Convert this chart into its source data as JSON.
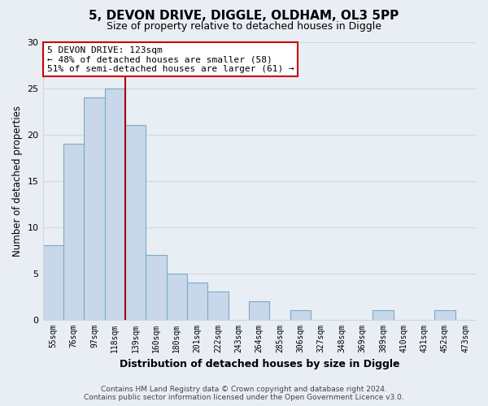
{
  "title": "5, DEVON DRIVE, DIGGLE, OLDHAM, OL3 5PP",
  "subtitle": "Size of property relative to detached houses in Diggle",
  "xlabel": "Distribution of detached houses by size in Diggle",
  "ylabel": "Number of detached properties",
  "categories": [
    "55sqm",
    "76sqm",
    "97sqm",
    "118sqm",
    "139sqm",
    "160sqm",
    "180sqm",
    "201sqm",
    "222sqm",
    "243sqm",
    "264sqm",
    "285sqm",
    "306sqm",
    "327sqm",
    "348sqm",
    "369sqm",
    "389sqm",
    "410sqm",
    "431sqm",
    "452sqm",
    "473sqm"
  ],
  "values": [
    8,
    19,
    24,
    25,
    21,
    7,
    5,
    4,
    3,
    0,
    2,
    0,
    1,
    0,
    0,
    0,
    1,
    0,
    0,
    1,
    0
  ],
  "bar_color": "#c8d8ea",
  "bar_edge_color": "#7aaac8",
  "highlight_line_color": "#aa0000",
  "highlight_index": 3,
  "annotation_line1": "5 DEVON DRIVE: 123sqm",
  "annotation_line2": "← 48% of detached houses are smaller (58)",
  "annotation_line3": "51% of semi-detached houses are larger (61) →",
  "annotation_box_color": "#ffffff",
  "annotation_box_edge_color": "#cc0000",
  "ylim": [
    0,
    30
  ],
  "yticks": [
    0,
    5,
    10,
    15,
    20,
    25,
    30
  ],
  "grid_color": "#d0d8e0",
  "background_color": "#e8eef4",
  "footer_line1": "Contains HM Land Registry data © Crown copyright and database right 2024.",
  "footer_line2": "Contains public sector information licensed under the Open Government Licence v3.0."
}
